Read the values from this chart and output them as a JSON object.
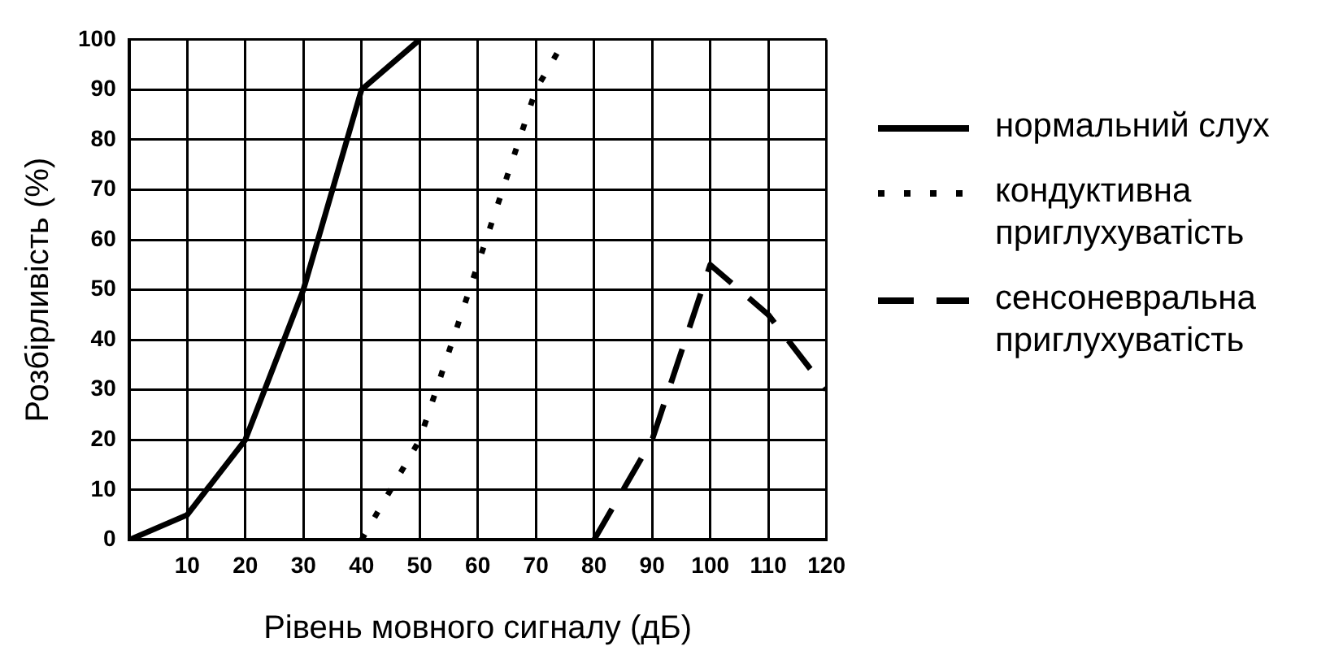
{
  "chart_data": {
    "type": "line",
    "xlabel": "Рівень мовного сигналу (дБ)",
    "ylabel": "Розбірливість (%)",
    "xlim": [
      0,
      120
    ],
    "xticks": [
      {
        "value": 0,
        "label": null
      },
      10,
      20,
      30,
      40,
      50,
      60,
      70,
      80,
      90,
      100,
      110,
      120
    ],
    "ylim": [
      0,
      100
    ],
    "yticks": [
      0,
      10,
      20,
      30,
      40,
      50,
      60,
      70,
      80,
      90,
      100
    ],
    "grid": true,
    "legend": "right",
    "marker": "none",
    "series": [
      {
        "name": "нормальний слух",
        "color": "#000000",
        "line_style": "solid",
        "x": [
          0,
          10,
          20,
          30,
          40,
          50
        ],
        "values": [
          0,
          5,
          20,
          50,
          90,
          100
        ]
      },
      {
        "name": "кондуктивна приглухуватість",
        "color": "#000000",
        "line_style": "dotted",
        "x": [
          40,
          50,
          60,
          70,
          74
        ],
        "values": [
          0,
          20,
          55,
          90,
          98
        ]
      },
      {
        "name": "сенсоневральна приглухуватість",
        "color": "#000000",
        "line_style": "dashed",
        "x": [
          80,
          90,
          100,
          110,
          120
        ],
        "values": [
          0,
          20,
          55,
          45,
          30
        ]
      }
    ]
  }
}
